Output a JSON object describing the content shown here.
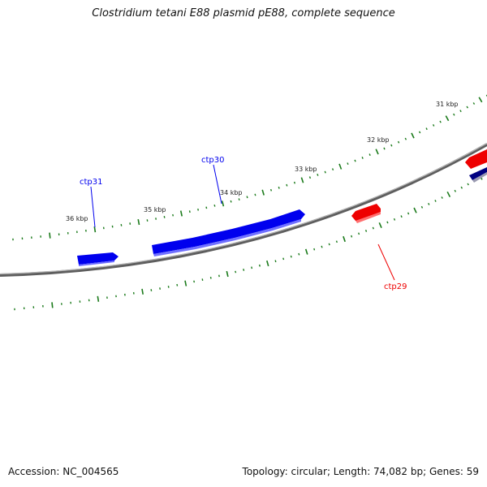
{
  "title": "Clostridium tetani E88 plasmid pE88, complete sequence",
  "footer": {
    "accession": "Accession: NC_004565",
    "summary": "Topology: circular; Length: 74,082 bp; Genes: 59"
  },
  "colors": {
    "forward_strand": "#0000ee",
    "reverse_strand": "#ee0000",
    "tick": "#1a7a1a",
    "backbone": "#777777"
  },
  "scale_labels": [
    "31 kbp",
    "32 kbp",
    "33 kbp",
    "34 kbp",
    "35 kbp",
    "36 kbp"
  ],
  "genes": [
    {
      "label": "ctp29",
      "strand": "reverse"
    },
    {
      "label": "ctp30",
      "strand": "forward"
    },
    {
      "label": "ctp31",
      "strand": "forward"
    }
  ]
}
